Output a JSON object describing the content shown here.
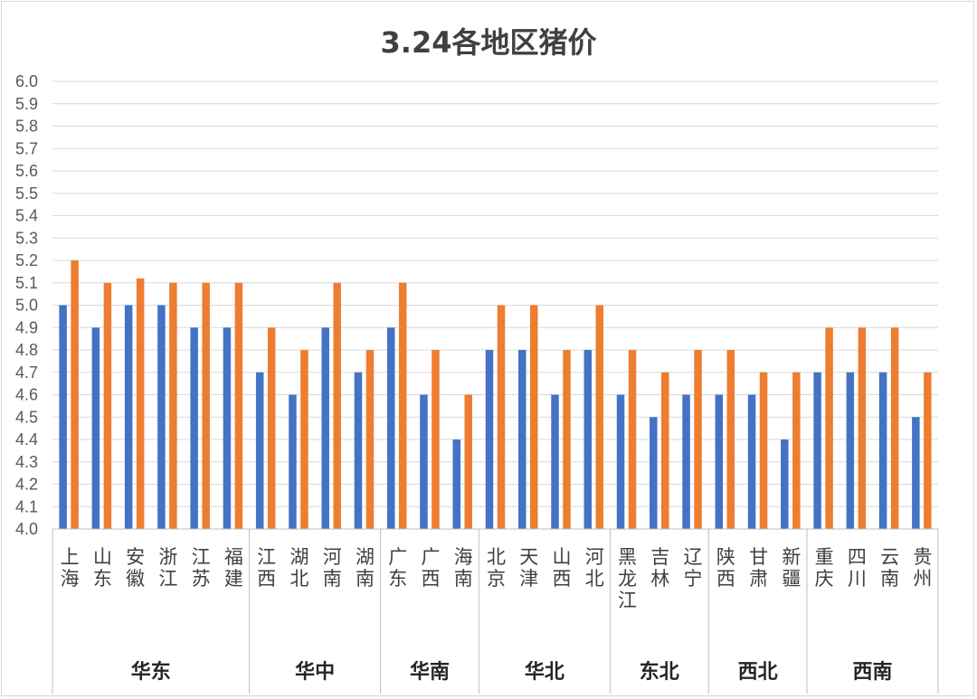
{
  "chart_data": {
    "type": "bar",
    "title": "3.24各地区猪价",
    "ylim": [
      4.0,
      6.0
    ],
    "ytick_step": 0.1,
    "grid": true,
    "groups": [
      {
        "name": "华东",
        "categories": [
          "上海",
          "山东",
          "安徽",
          "浙江",
          "江苏",
          "福建"
        ]
      },
      {
        "name": "华中",
        "categories": [
          "江西",
          "湖北",
          "河南",
          "湖南"
        ]
      },
      {
        "name": "华南",
        "categories": [
          "广东",
          "广西",
          "海南"
        ]
      },
      {
        "name": "华北",
        "categories": [
          "北京",
          "天津",
          "山西",
          "河北"
        ]
      },
      {
        "name": "东北",
        "categories": [
          "黑龙江",
          "吉林",
          "辽宁"
        ]
      },
      {
        "name": "西北",
        "categories": [
          "陕西",
          "甘肃",
          "新疆"
        ]
      },
      {
        "name": "西南",
        "categories": [
          "重庆",
          "四川",
          "云南",
          "贵州"
        ]
      }
    ],
    "categories": [
      "上海",
      "山东",
      "安徽",
      "浙江",
      "江苏",
      "福建",
      "江西",
      "湖北",
      "河南",
      "湖南",
      "广东",
      "广西",
      "海南",
      "北京",
      "天津",
      "山西",
      "河北",
      "黑龙江",
      "吉林",
      "辽宁",
      "陕西",
      "甘肃",
      "新疆",
      "重庆",
      "四川",
      "云南",
      "贵州"
    ],
    "series": [
      {
        "color": "#4472c4",
        "values": [
          5.0,
          4.9,
          5.0,
          5.0,
          4.9,
          4.9,
          4.7,
          4.6,
          4.9,
          4.7,
          4.9,
          4.6,
          4.4,
          4.8,
          4.8,
          4.6,
          4.8,
          4.6,
          4.5,
          4.6,
          4.6,
          4.6,
          4.4,
          4.7,
          4.7,
          4.7,
          4.5
        ]
      },
      {
        "color": "#ed7d31",
        "values": [
          5.2,
          5.1,
          5.12,
          5.1,
          5.1,
          5.1,
          4.9,
          4.8,
          5.1,
          4.8,
          5.1,
          4.8,
          4.6,
          5.0,
          5.0,
          4.8,
          5.0,
          4.8,
          4.7,
          4.8,
          4.8,
          4.7,
          4.7,
          4.9,
          4.9,
          4.9,
          4.7
        ]
      }
    ]
  }
}
